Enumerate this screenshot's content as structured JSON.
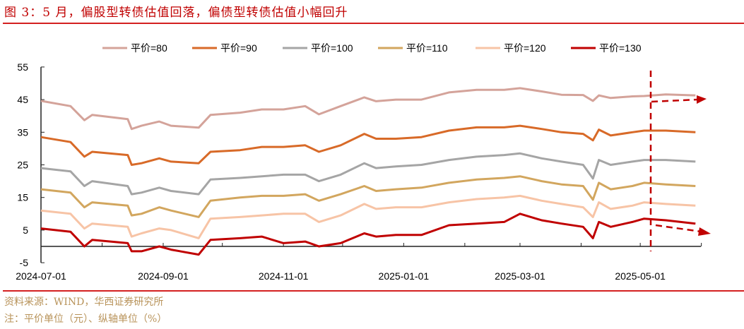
{
  "title": "图 3：5 月，偏股型转债估值回落，偏债型转债估值小幅回升",
  "footer": {
    "source": "资料来源：WIND，华西证券研究所",
    "note": "注：平价单位（元）、纵轴单位（%）"
  },
  "chart_data": {
    "type": "line",
    "title": "",
    "xlabel": "",
    "ylabel": "",
    "ylim": [
      -5,
      55
    ],
    "yticks": [
      "55",
      "45",
      "35",
      "25",
      "15",
      "5",
      "-5"
    ],
    "xticks": [
      "2024-07-01",
      "2024-09-01",
      "2024-11-01",
      "2025-01-01",
      "2025-03-01",
      "2025-05-01"
    ],
    "legend_position": "top",
    "grid": false,
    "x": [
      "2024-07-01",
      "2024-07-16",
      "2024-07-23",
      "2024-07-27",
      "2024-08-14",
      "2024-08-16",
      "2024-08-21",
      "2024-08-30",
      "2024-09-05",
      "2024-09-19",
      "2024-09-25",
      "2024-10-10",
      "2024-10-21",
      "2024-11-01",
      "2024-11-12",
      "2024-11-19",
      "2024-11-30",
      "2024-12-12",
      "2024-12-18",
      "2024-12-28",
      "2025-01-10",
      "2025-01-24",
      "2025-02-07",
      "2025-02-21",
      "2025-03-01",
      "2025-03-12",
      "2025-03-22",
      "2025-04-02",
      "2025-04-07",
      "2025-04-10",
      "2025-04-16",
      "2025-04-27",
      "2025-05-03",
      "2025-05-14",
      "2025-05-29"
    ],
    "series": [
      {
        "name": "平价=80",
        "color": "#d4a39a",
        "values": [
          44.6,
          43,
          38.7,
          40.3,
          39,
          36,
          37,
          38.3,
          37,
          36.4,
          40.3,
          41,
          42,
          42,
          43,
          40.5,
          43,
          45.7,
          44.5,
          45,
          45,
          47.2,
          48,
          48,
          48.5,
          47.5,
          46.5,
          46.4,
          44.6,
          46.3,
          45.5,
          46,
          46.1,
          46.6,
          46.3
        ]
      },
      {
        "name": "平价=90",
        "color": "#d86a28",
        "values": [
          33.5,
          32,
          27.5,
          29,
          28,
          25,
          25.5,
          27,
          26,
          25.5,
          29,
          29.5,
          30.5,
          30.5,
          31,
          29,
          31,
          34.5,
          33,
          33,
          33.5,
          35.5,
          36.5,
          36.5,
          37,
          36,
          35,
          34.5,
          32.5,
          35.8,
          34,
          35,
          35.5,
          35.5,
          35
        ]
      },
      {
        "name": "平价=100",
        "color": "#a5a5a5",
        "values": [
          24,
          23,
          18.5,
          20,
          18.5,
          16,
          16.5,
          18,
          17,
          16,
          20.5,
          21,
          21.5,
          22,
          22,
          20,
          22,
          25.5,
          24,
          24.5,
          25,
          26.5,
          27.5,
          28,
          28.5,
          27,
          26,
          25,
          20.8,
          26.5,
          25,
          26,
          26.5,
          26.5,
          26
        ]
      },
      {
        "name": "平价=110",
        "color": "#d2a65e",
        "values": [
          17.5,
          16.5,
          12,
          13.5,
          12.5,
          9.5,
          10,
          12,
          11,
          9,
          14,
          15,
          15.5,
          15.5,
          16,
          14,
          16,
          18.5,
          17,
          17.5,
          18,
          19.5,
          20.5,
          21,
          21.5,
          20,
          19,
          18.5,
          14.3,
          19.5,
          17.5,
          18.5,
          19.5,
          19,
          18.5
        ]
      },
      {
        "name": "平价=120",
        "color": "#f7c4a6",
        "values": [
          11,
          10,
          5.5,
          7,
          6,
          3,
          4,
          5.5,
          5,
          2.5,
          8.5,
          9,
          9.5,
          10,
          10,
          7.5,
          9.5,
          13,
          11.5,
          12,
          12,
          13.5,
          14.5,
          15,
          15.5,
          14,
          13,
          12,
          9,
          13.5,
          11.5,
          12.5,
          13.5,
          13,
          12.5
        ]
      },
      {
        "name": "平价=130",
        "color": "#c00000",
        "values": [
          5.5,
          4.5,
          0,
          2,
          1,
          -1.5,
          -1.5,
          0,
          -1,
          -2.5,
          2,
          2.5,
          3,
          1,
          1.5,
          0,
          1,
          4,
          3,
          3.5,
          3.5,
          6.5,
          7,
          7.5,
          10,
          8,
          7,
          6,
          2.5,
          7.5,
          6,
          7.5,
          8.5,
          8,
          7
        ]
      }
    ],
    "annotation_color": "#c00000"
  }
}
